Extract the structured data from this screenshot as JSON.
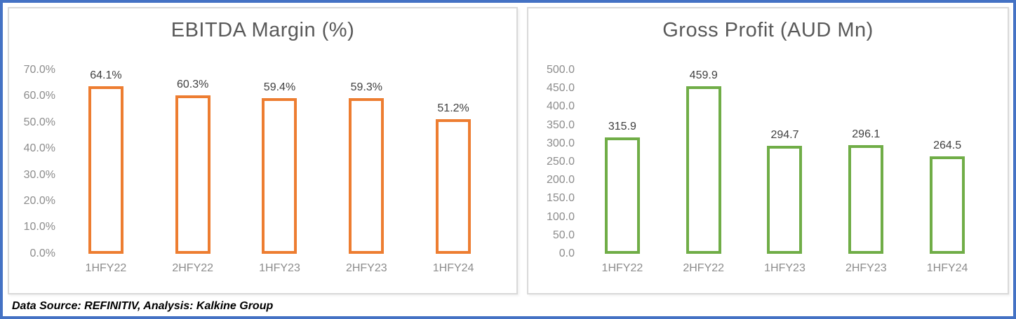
{
  "frame": {
    "outer_border_color": "#4472C4",
    "panel_border_color": "#D9D9D9",
    "background": "#FFFFFF"
  },
  "footer": {
    "text": "Data Source: REFINITIV, Analysis: Kalkine Group"
  },
  "chart_data": [
    {
      "type": "bar",
      "title": "EBITDA Margin (%)",
      "categories": [
        "1HFY22",
        "2HFY22",
        "1HFY23",
        "2HFY23",
        "1HFY24"
      ],
      "values": [
        64.1,
        60.3,
        59.4,
        59.3,
        51.2
      ],
      "value_labels": [
        "64.1%",
        "60.3%",
        "59.4%",
        "59.3%",
        "51.2%"
      ],
      "ylim": [
        0,
        70
      ],
      "ytick_step": 10,
      "ytick_labels": [
        "0.0%",
        "10.0%",
        "20.0%",
        "30.0%",
        "40.0%",
        "50.0%",
        "60.0%",
        "70.0%"
      ],
      "xlabel": "",
      "ylabel": "",
      "grid": false,
      "legend": "none",
      "bar_style": "outlined",
      "bar_color": "#ED7D31",
      "bar_fill": "#FFFFFF",
      "title_color": "#595959",
      "axis_label_color": "#8C8C8C",
      "value_label_color": "#404040"
    },
    {
      "type": "bar",
      "title": "Gross Profit (AUD Mn)",
      "categories": [
        "1HFY22",
        "2HFY22",
        "1HFY23",
        "2HFY23",
        "1HFY24"
      ],
      "values": [
        315.9,
        459.9,
        294.7,
        296.1,
        264.5
      ],
      "value_labels": [
        "315.9",
        "459.9",
        "294.7",
        "296.1",
        "264.5"
      ],
      "ylim": [
        0,
        500
      ],
      "ytick_step": 50,
      "ytick_labels": [
        "0.0",
        "50.0",
        "100.0",
        "150.0",
        "200.0",
        "250.0",
        "300.0",
        "350.0",
        "400.0",
        "450.0",
        "500.0"
      ],
      "xlabel": "",
      "ylabel": "",
      "grid": false,
      "legend": "none",
      "bar_style": "outlined",
      "bar_color": "#70AD47",
      "bar_fill": "#FFFFFF",
      "title_color": "#595959",
      "axis_label_color": "#8C8C8C",
      "value_label_color": "#404040"
    }
  ]
}
